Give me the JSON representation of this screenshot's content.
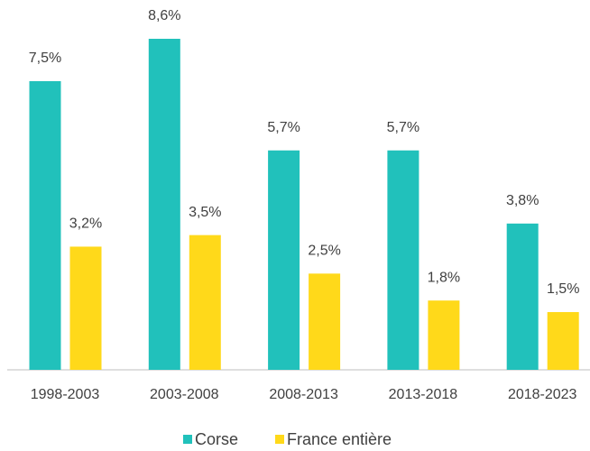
{
  "chart_data": {
    "type": "bar",
    "categories": [
      "1998-2003",
      "2003-2008",
      "2008-2013",
      "2013-2018",
      "2018-2023"
    ],
    "series": [
      {
        "name": "Corse",
        "color": "#21c1bb",
        "values": [
          7.5,
          8.6,
          5.7,
          5.7,
          3.8
        ],
        "value_labels": [
          "7,5%",
          "8,6%",
          "5,7%",
          "5,7%",
          "3,8%"
        ]
      },
      {
        "name": "France entière",
        "color": "#ffd91a",
        "values": [
          3.2,
          3.5,
          2.5,
          1.8,
          1.5
        ],
        "value_labels": [
          "3,2%",
          "3,5%",
          "2,5%",
          "1,8%",
          "1,5%"
        ]
      }
    ]
  }
}
